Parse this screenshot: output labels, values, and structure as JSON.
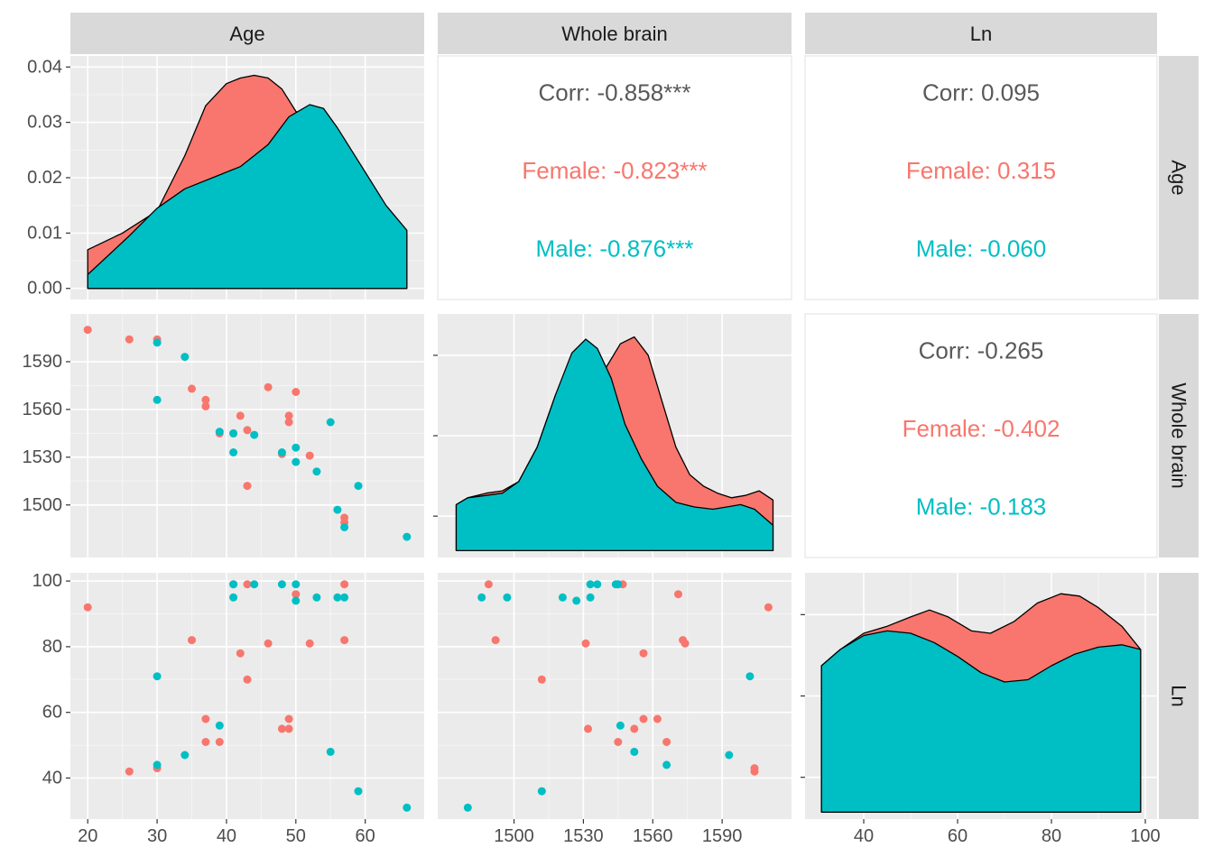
{
  "colors": {
    "female": "#F8766D",
    "male": "#00BFC4",
    "overall": "#595959",
    "panel_bg": "#EBEBEB",
    "strip_bg": "#D9D9D9",
    "grid_major": "#FFFFFF"
  },
  "chart_data": {
    "type": "scatter",
    "variables": [
      "Age",
      "Whole brain",
      "Ln"
    ],
    "groups": [
      "Female",
      "Male"
    ],
    "axes": {
      "Age": {
        "lim": [
          17.5,
          68.5
        ],
        "ticks": [
          20,
          30,
          40,
          50,
          60
        ],
        "tick_labels": [
          "20",
          "30",
          "40",
          "50",
          "60"
        ]
      },
      "Whole brain": {
        "lim": [
          1467,
          1620
        ],
        "ticks": [
          1500,
          1530,
          1560,
          1590
        ],
        "tick_labels": [
          "1500",
          "1530",
          "1560",
          "1590"
        ]
      },
      "Ln": {
        "lim": [
          27.5,
          102.5
        ],
        "ticks": [
          40,
          60,
          80,
          100
        ],
        "tick_labels": [
          "40",
          "60",
          "80",
          "100"
        ]
      }
    },
    "density_y_axis": {
      "lim": [
        -0.002,
        0.042
      ],
      "ticks": [
        0,
        0.01,
        0.02,
        0.03,
        0.04
      ],
      "tick_labels": [
        "0.00",
        "0.01",
        "0.02",
        "0.03",
        "0.04"
      ]
    },
    "densities": {
      "Age": {
        "Female": [
          [
            20,
            0.007
          ],
          [
            25,
            0.01
          ],
          [
            30,
            0.014
          ],
          [
            34,
            0.024
          ],
          [
            37,
            0.033
          ],
          [
            40,
            0.037
          ],
          [
            42,
            0.038
          ],
          [
            44,
            0.0385
          ],
          [
            46,
            0.038
          ],
          [
            48,
            0.036
          ],
          [
            50,
            0.032
          ],
          [
            53,
            0.03
          ],
          [
            56,
            0.026
          ],
          [
            60,
            0.018
          ],
          [
            63,
            0.014
          ],
          [
            66,
            0.01
          ]
        ],
        "Male": [
          [
            20,
            0.0025
          ],
          [
            23,
            0.006
          ],
          [
            26,
            0.0095
          ],
          [
            30,
            0.0145
          ],
          [
            34,
            0.018
          ],
          [
            38,
            0.02
          ],
          [
            42,
            0.022
          ],
          [
            46,
            0.026
          ],
          [
            49,
            0.031
          ],
          [
            52,
            0.0332
          ],
          [
            54,
            0.0325
          ],
          [
            56,
            0.029
          ],
          [
            58,
            0.025
          ],
          [
            60,
            0.021
          ],
          [
            63,
            0.015
          ],
          [
            66,
            0.0105
          ]
        ]
      },
      "Whole brain": {
        "Female": [
          [
            1475,
            0.2
          ],
          [
            1480,
            0.23
          ],
          [
            1488,
            0.25
          ],
          [
            1495,
            0.26
          ],
          [
            1502,
            0.3
          ],
          [
            1510,
            0.45
          ],
          [
            1518,
            0.68
          ],
          [
            1525,
            0.79
          ],
          [
            1530,
            0.73
          ],
          [
            1535,
            0.72
          ],
          [
            1540,
            0.8
          ],
          [
            1546,
            0.9
          ],
          [
            1552,
            0.93
          ],
          [
            1558,
            0.85
          ],
          [
            1564,
            0.65
          ],
          [
            1570,
            0.45
          ],
          [
            1576,
            0.33
          ],
          [
            1582,
            0.28
          ],
          [
            1588,
            0.25
          ],
          [
            1594,
            0.23
          ],
          [
            1600,
            0.24
          ],
          [
            1606,
            0.26
          ],
          [
            1612,
            0.22
          ]
        ],
        "Male": [
          [
            1475,
            0.2
          ],
          [
            1480,
            0.23
          ],
          [
            1488,
            0.24
          ],
          [
            1495,
            0.25
          ],
          [
            1502,
            0.3
          ],
          [
            1510,
            0.45
          ],
          [
            1518,
            0.68
          ],
          [
            1525,
            0.86
          ],
          [
            1531,
            0.92
          ],
          [
            1536,
            0.88
          ],
          [
            1542,
            0.75
          ],
          [
            1548,
            0.55
          ],
          [
            1555,
            0.4
          ],
          [
            1562,
            0.28
          ],
          [
            1570,
            0.21
          ],
          [
            1578,
            0.19
          ],
          [
            1586,
            0.18
          ],
          [
            1592,
            0.19
          ],
          [
            1598,
            0.2
          ],
          [
            1604,
            0.18
          ],
          [
            1612,
            0.11
          ]
        ]
      },
      "Ln": {
        "Female": [
          [
            31,
            0.63
          ],
          [
            35,
            0.7
          ],
          [
            40,
            0.77
          ],
          [
            45,
            0.8
          ],
          [
            50,
            0.84
          ],
          [
            54,
            0.87
          ],
          [
            58,
            0.84
          ],
          [
            63,
            0.78
          ],
          [
            67,
            0.77
          ],
          [
            72,
            0.82
          ],
          [
            77,
            0.9
          ],
          [
            82,
            0.94
          ],
          [
            86,
            0.93
          ],
          [
            90,
            0.88
          ],
          [
            95,
            0.8
          ],
          [
            99,
            0.7
          ]
        ],
        "Male": [
          [
            31,
            0.63
          ],
          [
            35,
            0.7
          ],
          [
            40,
            0.76
          ],
          [
            45,
            0.78
          ],
          [
            50,
            0.77
          ],
          [
            55,
            0.73
          ],
          [
            60,
            0.67
          ],
          [
            65,
            0.6
          ],
          [
            70,
            0.56
          ],
          [
            75,
            0.57
          ],
          [
            80,
            0.63
          ],
          [
            85,
            0.68
          ],
          [
            90,
            0.71
          ],
          [
            95,
            0.72
          ],
          [
            99,
            0.7
          ]
        ]
      }
    },
    "points": {
      "Female": [
        [
          20,
          1610,
          92
        ],
        [
          26,
          1604,
          42
        ],
        [
          30,
          1604,
          43
        ],
        [
          35,
          1573,
          82
        ],
        [
          37,
          1566,
          51
        ],
        [
          37,
          1562,
          58
        ],
        [
          39,
          1545,
          51
        ],
        [
          41,
          1545,
          99
        ],
        [
          42,
          1556,
          78
        ],
        [
          43,
          1547,
          99
        ],
        [
          43,
          1512,
          70
        ],
        [
          46,
          1574,
          81
        ],
        [
          48,
          1532,
          55
        ],
        [
          49,
          1556,
          58
        ],
        [
          49,
          1552,
          55
        ],
        [
          50,
          1571,
          96
        ],
        [
          52,
          1531,
          81
        ],
        [
          57,
          1489,
          99
        ],
        [
          57,
          1492,
          82
        ]
      ],
      "Male": [
        [
          30,
          1602,
          71
        ],
        [
          30,
          1566,
          44
        ],
        [
          34,
          1593,
          47
        ],
        [
          39,
          1546,
          56
        ],
        [
          41,
          1533,
          95
        ],
        [
          41,
          1545,
          99
        ],
        [
          44,
          1544,
          99
        ],
        [
          48,
          1533,
          99
        ],
        [
          50,
          1536,
          99
        ],
        [
          50,
          1527,
          94
        ],
        [
          53,
          1521,
          95
        ],
        [
          55,
          1552,
          48
        ],
        [
          56,
          1497,
          95
        ],
        [
          57,
          1486,
          95
        ],
        [
          59,
          1512,
          36
        ],
        [
          66,
          1480,
          31
        ]
      ]
    },
    "correlations": {
      "Age|Whole brain": {
        "overall": "Corr: -0.858***",
        "female": "Female: -0.823***",
        "male": "Male: -0.876***"
      },
      "Age|Ln": {
        "overall": "Corr: 0.095",
        "female": "Female: 0.315",
        "male": "Male: -0.060"
      },
      "Whole brain|Ln": {
        "overall": "Corr: -0.265",
        "female": "Female: -0.402",
        "male": "Male: -0.183"
      }
    }
  }
}
